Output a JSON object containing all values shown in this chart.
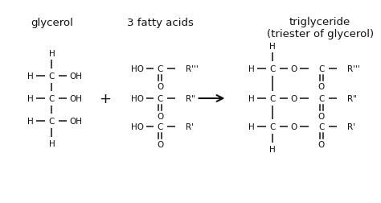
{
  "bg_color": "#ffffff",
  "text_color": "#111111",
  "figsize": [
    4.74,
    2.53
  ],
  "dpi": 100,
  "glycerol_label": "glycerol",
  "fatty_acids_label": "3 fatty acids",
  "triglyceride_label": "triglyceride\n(triester of glycerol)",
  "plus_sign": "+",
  "font_size": 7.5,
  "label_font_size": 9.5
}
